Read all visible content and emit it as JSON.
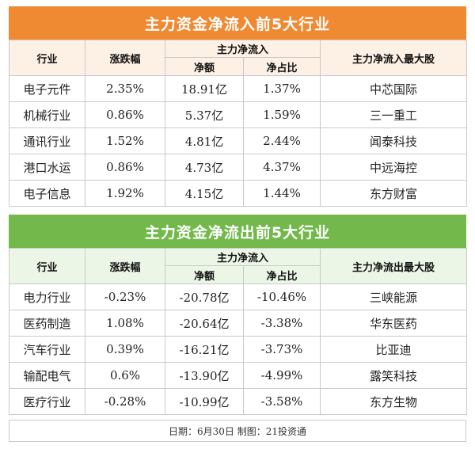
{
  "inflow": {
    "title": "主力资金净流入前5大行业",
    "headers": {
      "industry": "行业",
      "change": "涨跌幅",
      "group": "主力净流入",
      "net": "净额",
      "ratio": "净占比",
      "top_stock": "主力净流入最大股"
    },
    "rows": [
      {
        "industry": "电子元件",
        "change": "2.35%",
        "net": "18.91亿",
        "ratio": "1.37%",
        "stock": "中芯国际"
      },
      {
        "industry": "机械行业",
        "change": "0.86%",
        "net": "5.37亿",
        "ratio": "1.59%",
        "stock": "三一重工"
      },
      {
        "industry": "通讯行业",
        "change": "1.52%",
        "net": "4.81亿",
        "ratio": "2.44%",
        "stock": "闻泰科技"
      },
      {
        "industry": "港口水运",
        "change": "0.86%",
        "net": "4.73亿",
        "ratio": "4.37%",
        "stock": "中远海控"
      },
      {
        "industry": "电子信息",
        "change": "1.92%",
        "net": "4.15亿",
        "ratio": "1.44%",
        "stock": "东方财富"
      }
    ]
  },
  "outflow": {
    "title": "主力资金净流出前5大行业",
    "headers": {
      "industry": "行业",
      "change": "涨跌幅",
      "group": "主力净流入",
      "net": "净额",
      "ratio": "净占比",
      "top_stock": "主力净流出最大股"
    },
    "rows": [
      {
        "industry": "电力行业",
        "change": "-0.23%",
        "net": "-20.78亿",
        "ratio": "-10.46%",
        "stock": "三峡能源"
      },
      {
        "industry": "医药制造",
        "change": "1.08%",
        "net": "-20.64亿",
        "ratio": "-3.38%",
        "stock": "华东医药"
      },
      {
        "industry": "汽车行业",
        "change": "0.39%",
        "net": "-16.21亿",
        "ratio": "-3.73%",
        "stock": "比亚迪"
      },
      {
        "industry": "输配电气",
        "change": "0.6%",
        "net": "-13.90亿",
        "ratio": "-4.99%",
        "stock": "露笑科技"
      },
      {
        "industry": "医疗行业",
        "change": "-0.28%",
        "net": "-10.99亿",
        "ratio": "-3.58%",
        "stock": "东方生物"
      }
    ]
  },
  "footer": "日期：6月30日  制图：21投资通"
}
